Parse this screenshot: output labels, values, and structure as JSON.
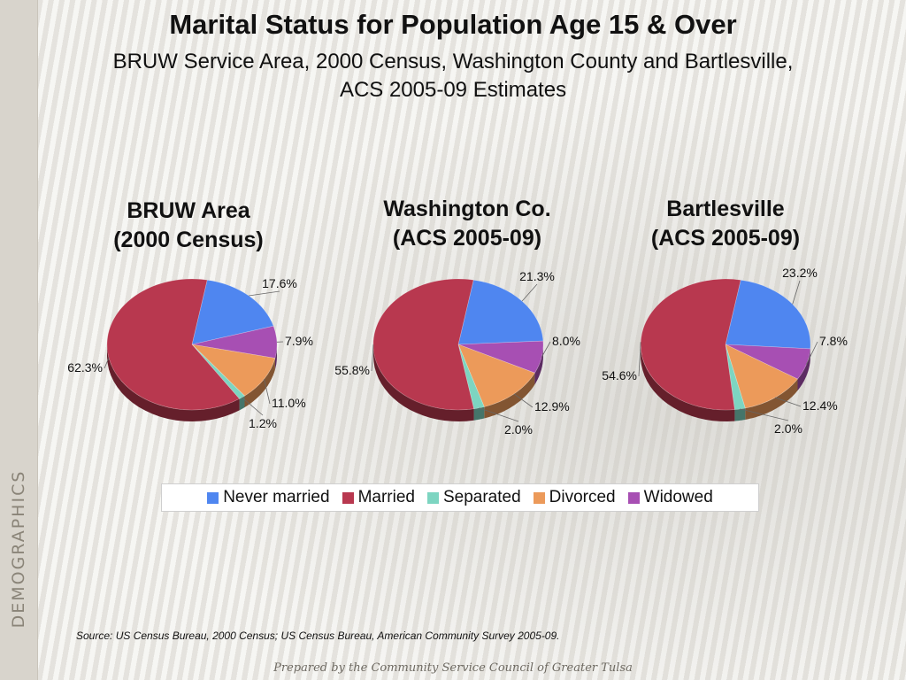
{
  "title": "Marital Status for Population Age 15 & Over",
  "subtitle_line1": "BRUW Service Area, 2000 Census, Washington County and Bartlesville,",
  "subtitle_line2": "ACS 2005-09 Estimates",
  "side_label": "DEMOGRAPHICS",
  "source": "Source:  US Census Bureau, 2000 Census; US Census Bureau, American Community Survey 2005-09.",
  "footer": "Prepared by the Community Service Council of Greater Tulsa",
  "colors": {
    "Never married": "#4f86f0",
    "Married": "#b8384f",
    "Separated": "#7dd5c1",
    "Divorced": "#ec9a5a",
    "Widowed": "#a74fb3"
  },
  "chart_data": [
    {
      "type": "pie",
      "title_line1": "BRUW Area",
      "title_line2": "(2000 Census)",
      "slices": [
        {
          "label": "Never married",
          "value": 17.6,
          "text": "17.6%"
        },
        {
          "label": "Widowed",
          "value": 7.9,
          "text": "7.9%"
        },
        {
          "label": "Divorced",
          "value": 11.0,
          "text": "11.0%"
        },
        {
          "label": "Separated",
          "value": 1.2,
          "text": "1.2%"
        },
        {
          "label": "Married",
          "value": 62.3,
          "text": "62.3%"
        }
      ]
    },
    {
      "type": "pie",
      "title_line1": "Washington Co.",
      "title_line2": "(ACS 2005-09)",
      "slices": [
        {
          "label": "Never married",
          "value": 21.3,
          "text": "21.3%"
        },
        {
          "label": "Widowed",
          "value": 8.0,
          "text": "8.0%"
        },
        {
          "label": "Divorced",
          "value": 12.9,
          "text": "12.9%"
        },
        {
          "label": "Separated",
          "value": 2.0,
          "text": "2.0%"
        },
        {
          "label": "Married",
          "value": 55.8,
          "text": "55.8%"
        }
      ]
    },
    {
      "type": "pie",
      "title_line1": "Bartlesville",
      "title_line2": "(ACS 2005-09)",
      "slices": [
        {
          "label": "Never married",
          "value": 23.2,
          "text": "23.2%"
        },
        {
          "label": "Widowed",
          "value": 7.8,
          "text": "7.8%"
        },
        {
          "label": "Divorced",
          "value": 12.4,
          "text": "12.4%"
        },
        {
          "label": "Separated",
          "value": 2.0,
          "text": "2.0%"
        },
        {
          "label": "Married",
          "value": 54.6,
          "text": "54.6%"
        }
      ]
    }
  ],
  "legend": [
    "Never married",
    "Married",
    "Separated",
    "Divorced",
    "Widowed"
  ]
}
